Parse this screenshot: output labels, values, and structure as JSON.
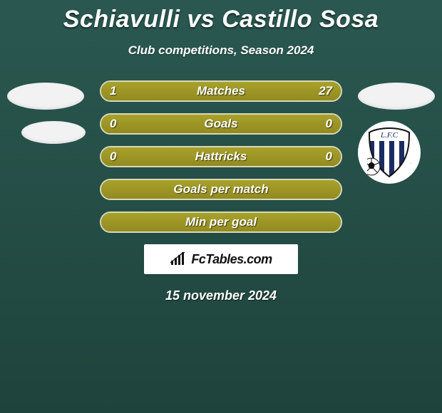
{
  "header": {
    "title": "Schiavulli vs Castillo Sosa",
    "subtitle": "Club competitions, Season 2024",
    "title_color": "#ffffff",
    "title_fontsize": 34
  },
  "background": {
    "gradient_top": "#2a5850",
    "gradient_bottom": "#1e433c"
  },
  "bars": {
    "border_color": "#d9d8b7",
    "fill_color": "#9f9926",
    "text_color": "#ffffff",
    "stats": [
      {
        "label": "Matches",
        "left_value": "1",
        "right_value": "27",
        "left_pct": 4,
        "right_pct": 96
      },
      {
        "label": "Goals",
        "left_value": "0",
        "right_value": "0",
        "left_pct": 50,
        "right_pct": 50,
        "full": true
      },
      {
        "label": "Hattricks",
        "left_value": "0",
        "right_value": "0",
        "left_pct": 50,
        "right_pct": 50,
        "full": true
      },
      {
        "label": "Goals per match",
        "full": true
      },
      {
        "label": "Min per goal",
        "full": true
      }
    ]
  },
  "brand": {
    "text": "FcTables.com"
  },
  "date": "15 november 2024",
  "badges": {
    "left": {
      "ellipses": 2,
      "ellipse_color": "#f2f2f2"
    },
    "right": {
      "ellipses": 1,
      "ellipse_color": "#f2f2f2",
      "crest": {
        "monogram": "L.F.C",
        "stripe_colors": [
          "#1b2c63",
          "#ffffff"
        ],
        "ball_color": "#111111"
      }
    }
  }
}
